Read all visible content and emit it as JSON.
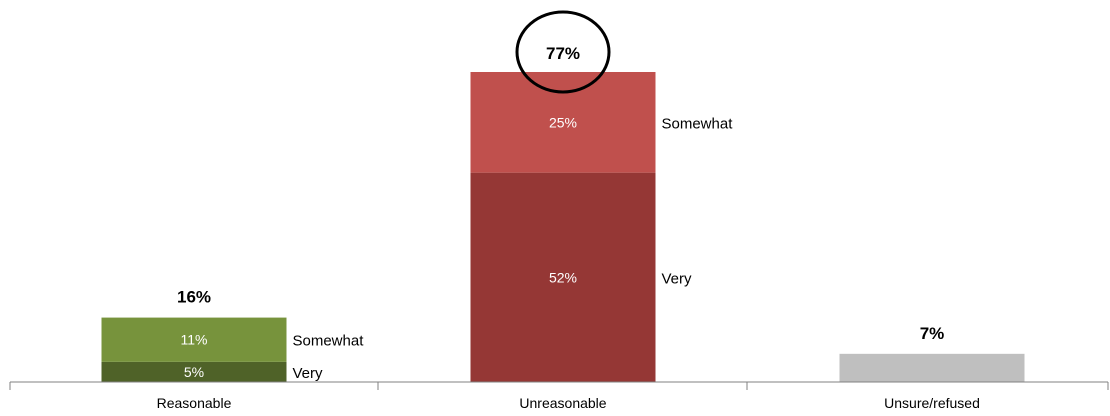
{
  "chart_data": {
    "type": "bar",
    "stacked": true,
    "categories": [
      "Reasonable",
      "Unreasonable",
      "Unsure/refused"
    ],
    "bars": [
      {
        "category": "Reasonable",
        "total_label": "16%",
        "segments": [
          {
            "name": "Very",
            "value": 5,
            "label": "5%",
            "color": "#4f6228"
          },
          {
            "name": "Somewhat",
            "value": 11,
            "label": "11%",
            "color": "#77933c"
          }
        ]
      },
      {
        "category": "Unreasonable",
        "total_label": "77%",
        "highlighted": true,
        "segments": [
          {
            "name": "Very",
            "value": 52,
            "label": "52%",
            "color": "#953735"
          },
          {
            "name": "Somewhat",
            "value": 25,
            "label": "25%",
            "color": "#c0504d"
          }
        ]
      },
      {
        "category": "Unsure/refused",
        "total_label": "7%",
        "segments": [
          {
            "name": "",
            "value": 7,
            "label": "",
            "color": "#bfbfbf"
          }
        ]
      }
    ],
    "ylim": [
      0,
      77
    ],
    "grid": false,
    "legend": "none",
    "title": "",
    "xlabel": "",
    "ylabel": ""
  }
}
